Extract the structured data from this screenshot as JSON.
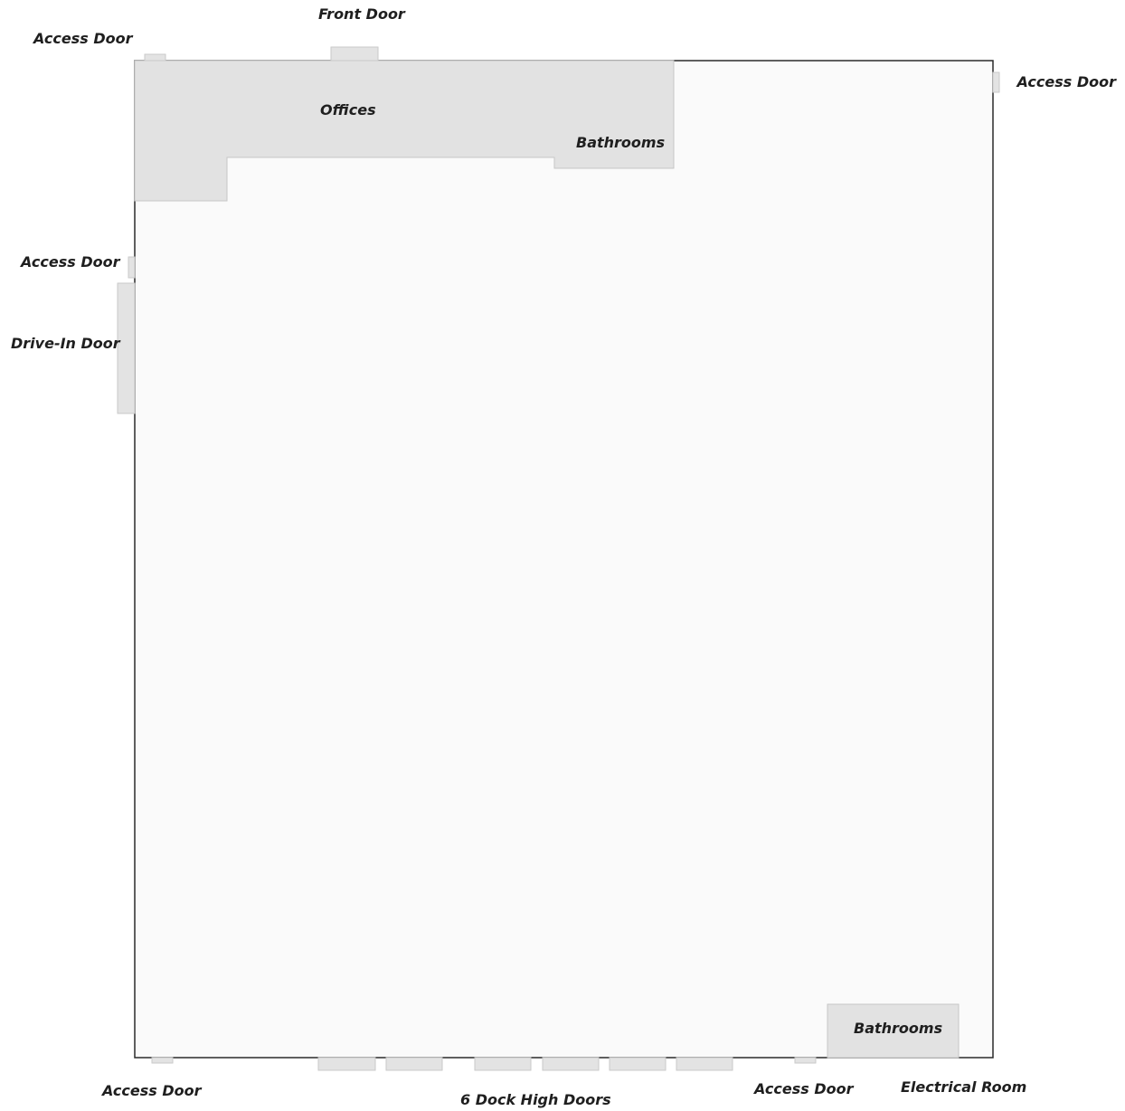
{
  "colors": {
    "floor": "#fafafa",
    "wall": "#2a2a2a",
    "room_fill": "#e2e2e2",
    "room_stroke": "#c6c6c6",
    "door_fill": "#e3e3e3",
    "door_stroke": "#c9c9c9",
    "label": "#1f1f1f"
  },
  "labels": {
    "front_door": "Front Door",
    "access_door_top_left": "Access Door",
    "access_door_top_right": "Access Door",
    "access_door_left": "Access Door",
    "drive_in_door": "Drive-In Door",
    "offices": "Offices",
    "bathrooms_top": "Bathrooms",
    "bathrooms_bottom": "Bathrooms",
    "access_door_bottom_left": "Access Door",
    "dock_doors": "6 Dock High Doors",
    "access_door_bottom_right": "Access Door",
    "electrical_room": "Electrical Room"
  }
}
